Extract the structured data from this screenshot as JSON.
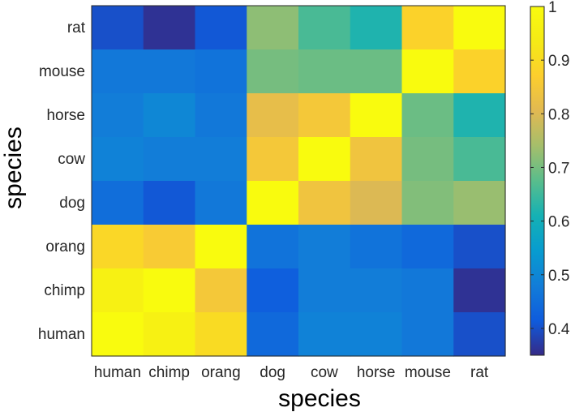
{
  "chart_data": {
    "type": "heatmap",
    "title": "",
    "xlabel": "species",
    "ylabel": "species",
    "x_categories": [
      "human",
      "chimp",
      "orang",
      "dog",
      "cow",
      "horse",
      "mouse",
      "rat"
    ],
    "y_categories_top_to_bottom": [
      "rat",
      "mouse",
      "horse",
      "cow",
      "dog",
      "orang",
      "chimp",
      "human"
    ],
    "values_rows_top_to_bottom": [
      [
        0.4,
        0.36,
        0.41,
        0.72,
        0.66,
        0.62,
        0.88,
        1.0
      ],
      [
        0.47,
        0.47,
        0.46,
        0.7,
        0.69,
        0.69,
        1.0,
        0.88
      ],
      [
        0.48,
        0.5,
        0.47,
        0.82,
        0.85,
        1.0,
        0.69,
        0.62
      ],
      [
        0.49,
        0.48,
        0.48,
        0.85,
        1.0,
        0.84,
        0.7,
        0.66
      ],
      [
        0.45,
        0.41,
        0.47,
        1.0,
        0.84,
        0.8,
        0.71,
        0.73
      ],
      [
        0.89,
        0.86,
        1.0,
        0.46,
        0.48,
        0.46,
        0.44,
        0.4
      ],
      [
        0.96,
        1.0,
        0.85,
        0.42,
        0.48,
        0.48,
        0.47,
        0.36
      ],
      [
        1.0,
        0.96,
        0.9,
        0.44,
        0.49,
        0.49,
        0.47,
        0.4
      ]
    ],
    "colorbar": {
      "range": [
        0.35,
        1.0
      ],
      "ticks": [
        "0.4",
        "0.5",
        "0.6",
        "0.7",
        "0.8",
        "0.9",
        "1"
      ],
      "tick_values": [
        0.4,
        0.5,
        0.6,
        0.7,
        0.8,
        0.9,
        1.0
      ],
      "colormap": "parula"
    },
    "grid": false,
    "legend": "colorbar-right"
  }
}
